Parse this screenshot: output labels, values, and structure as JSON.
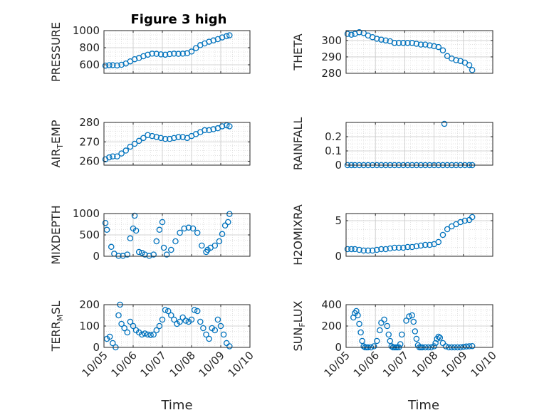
{
  "figure": {
    "title": "Figure 3 high",
    "xlabel": "Time",
    "x_tick_labels": [
      "10/05",
      "10/06",
      "10/07",
      "10/08",
      "10/09",
      "10/10"
    ],
    "marker_color": "#0072BD"
  },
  "chart_data": [
    {
      "type": "scatter",
      "id": "pressure",
      "title": "Figure 3 high",
      "ylabel": {
        "main": "PRESSURE",
        "sub": ""
      },
      "ylim": [
        500,
        1000
      ],
      "yticks": [
        600,
        800,
        1000
      ],
      "tick_labels": [
        "600",
        "800",
        "1000"
      ],
      "xlim": [
        0,
        5
      ],
      "xlabel": "",
      "x": [
        0.05,
        0.18,
        0.3,
        0.45,
        0.6,
        0.75,
        0.9,
        1.05,
        1.2,
        1.35,
        1.5,
        1.65,
        1.8,
        1.95,
        2.1,
        2.25,
        2.4,
        2.55,
        2.7,
        2.85,
        3.0,
        3.15,
        3.3,
        3.45,
        3.6,
        3.75,
        3.9,
        4.05,
        4.2,
        4.3
      ],
      "y": [
        590,
        595,
        595,
        592,
        600,
        615,
        640,
        665,
        680,
        700,
        718,
        730,
        728,
        722,
        718,
        725,
        730,
        728,
        730,
        735,
        755,
        795,
        830,
        850,
        870,
        885,
        900,
        920,
        935,
        945
      ]
    },
    {
      "type": "scatter",
      "id": "theta",
      "ylabel": {
        "main": "THETA",
        "sub": ""
      },
      "ylim": [
        280,
        306
      ],
      "yticks": [
        280,
        290,
        300
      ],
      "tick_labels": [
        "280",
        "290",
        "300"
      ],
      "xlim": [
        0,
        5
      ],
      "xlabel": "",
      "x": [
        0.05,
        0.18,
        0.3,
        0.45,
        0.6,
        0.75,
        0.9,
        1.05,
        1.2,
        1.35,
        1.5,
        1.65,
        1.8,
        1.95,
        2.1,
        2.25,
        2.4,
        2.55,
        2.7,
        2.85,
        3.0,
        3.15,
        3.3,
        3.45,
        3.6,
        3.75,
        3.9,
        4.05,
        4.2,
        4.3
      ],
      "y": [
        304,
        303.5,
        304,
        305,
        304.5,
        303,
        302,
        301,
        300.5,
        300,
        299.5,
        298.5,
        298.5,
        298.5,
        298.5,
        298.5,
        298,
        297.5,
        297.5,
        297,
        296.5,
        296,
        294,
        290.5,
        289,
        288,
        287.5,
        286.5,
        285,
        282
      ]
    },
    {
      "type": "scatter",
      "id": "air-temp",
      "ylabel": {
        "main": "AIR",
        "sub": "T",
        "rest": "EMP"
      },
      "ylim": [
        258,
        280
      ],
      "yticks": [
        260,
        270,
        280
      ],
      "tick_labels": [
        "260",
        "270",
        "280"
      ],
      "xlim": [
        0,
        5
      ],
      "xlabel": "",
      "x": [
        0.05,
        0.18,
        0.3,
        0.45,
        0.6,
        0.75,
        0.9,
        1.05,
        1.2,
        1.35,
        1.5,
        1.65,
        1.8,
        1.95,
        2.1,
        2.25,
        2.4,
        2.55,
        2.7,
        2.85,
        3.0,
        3.15,
        3.3,
        3.45,
        3.6,
        3.75,
        3.9,
        4.05,
        4.2,
        4.3
      ],
      "y": [
        261,
        262,
        262.5,
        262.5,
        264,
        265.5,
        267.5,
        269,
        270.5,
        272,
        273.5,
        273,
        272.5,
        272,
        271.5,
        271.5,
        272,
        272.5,
        272.5,
        272,
        273,
        274,
        275,
        276,
        276,
        276.5,
        277,
        278,
        278.5,
        278
      ]
    },
    {
      "type": "scatter",
      "id": "rainfall",
      "ylabel": {
        "main": "RAINFALL",
        "sub": ""
      },
      "ylim": [
        0,
        0.3
      ],
      "yticks": [
        0,
        0.1,
        0.2
      ],
      "tick_labels": [
        "0",
        "0.1",
        "0.2"
      ],
      "xlim": [
        0,
        5
      ],
      "xlabel": "",
      "x": [
        0.05,
        0.18,
        0.3,
        0.45,
        0.6,
        0.75,
        0.9,
        1.05,
        1.2,
        1.35,
        1.5,
        1.65,
        1.8,
        1.95,
        2.1,
        2.25,
        2.4,
        2.55,
        2.7,
        2.85,
        3.0,
        3.15,
        3.3,
        3.45,
        3.6,
        3.75,
        3.9,
        4.05,
        4.2,
        4.3,
        3.35
      ],
      "y": [
        0,
        0,
        0,
        0,
        0,
        0,
        0,
        0,
        0,
        0,
        0,
        0,
        0,
        0,
        0,
        0,
        0,
        0,
        0,
        0,
        0,
        0,
        0,
        0,
        0,
        0,
        0,
        0,
        0,
        0,
        0.29
      ]
    },
    {
      "type": "scatter",
      "id": "mixdepth",
      "ylabel": {
        "main": "MIXDEPTH",
        "sub": ""
      },
      "ylim": [
        0,
        1000
      ],
      "yticks": [
        0,
        500,
        1000
      ],
      "tick_labels": [
        "0",
        "500",
        "1000"
      ],
      "xlim": [
        0,
        5
      ],
      "xlabel": "",
      "x": [
        0.05,
        0.1,
        0.25,
        0.35,
        0.5,
        0.65,
        0.8,
        0.9,
        1.0,
        1.05,
        1.1,
        1.2,
        1.3,
        1.4,
        1.55,
        1.7,
        1.8,
        1.9,
        2.0,
        2.05,
        2.15,
        2.3,
        2.45,
        2.6,
        2.75,
        2.9,
        3.05,
        3.2,
        3.35,
        3.5,
        3.55,
        3.65,
        3.8,
        3.95,
        4.05,
        4.15,
        4.25,
        4.3
      ],
      "y": [
        780,
        620,
        220,
        60,
        10,
        10,
        40,
        420,
        650,
        950,
        600,
        100,
        80,
        40,
        10,
        40,
        350,
        620,
        800,
        200,
        40,
        150,
        350,
        550,
        650,
        670,
        650,
        550,
        250,
        100,
        150,
        200,
        250,
        350,
        520,
        720,
        800,
        990
      ]
    },
    {
      "type": "scatter",
      "id": "h2omixra",
      "ylabel": {
        "main": "H2OMIXRA",
        "sub": ""
      },
      "ylim": [
        0,
        6
      ],
      "yticks": [
        0,
        5
      ],
      "tick_labels": [
        "0",
        "5"
      ],
      "xlim": [
        0,
        5
      ],
      "xlabel": "",
      "x": [
        0.05,
        0.18,
        0.3,
        0.45,
        0.6,
        0.75,
        0.9,
        1.05,
        1.2,
        1.35,
        1.5,
        1.65,
        1.8,
        1.95,
        2.1,
        2.25,
        2.4,
        2.55,
        2.7,
        2.85,
        3.0,
        3.15,
        3.3,
        3.45,
        3.6,
        3.75,
        3.9,
        4.05,
        4.2,
        4.3
      ],
      "y": [
        1.0,
        1.0,
        1.0,
        0.9,
        0.8,
        0.8,
        0.8,
        0.9,
        1.0,
        1.0,
        1.1,
        1.2,
        1.2,
        1.2,
        1.3,
        1.3,
        1.4,
        1.5,
        1.6,
        1.6,
        1.7,
        2.0,
        3.0,
        3.8,
        4.2,
        4.5,
        4.8,
        5.0,
        5.1,
        5.5
      ]
    },
    {
      "type": "scatter",
      "id": "terr-msl",
      "ylabel": {
        "main": "TERR",
        "sub": "M",
        "rest": "SL"
      },
      "ylim": [
        0,
        200
      ],
      "yticks": [
        0,
        100,
        200
      ],
      "tick_labels": [
        "0",
        "100",
        "200"
      ],
      "xlim": [
        0,
        5
      ],
      "xlabel": "Time",
      "x_tick_labels": [
        "10/05",
        "10/06",
        "10/07",
        "10/08",
        "10/09",
        "10/10"
      ],
      "x": [
        0.1,
        0.2,
        0.3,
        0.4,
        0.5,
        0.55,
        0.6,
        0.7,
        0.8,
        0.9,
        1.0,
        1.1,
        1.2,
        1.3,
        1.4,
        1.5,
        1.6,
        1.7,
        1.8,
        1.9,
        2.0,
        2.1,
        2.2,
        2.3,
        2.4,
        2.5,
        2.6,
        2.7,
        2.8,
        2.9,
        3.0,
        3.1,
        3.2,
        3.3,
        3.4,
        3.5,
        3.6,
        3.7,
        3.8,
        3.9,
        4.0,
        4.1,
        4.2,
        4.3
      ],
      "y": [
        40,
        50,
        20,
        0,
        150,
        200,
        110,
        90,
        70,
        120,
        100,
        80,
        70,
        60,
        65,
        60,
        58,
        60,
        80,
        100,
        130,
        175,
        170,
        150,
        130,
        110,
        120,
        140,
        125,
        120,
        130,
        175,
        170,
        120,
        90,
        60,
        40,
        90,
        80,
        130,
        100,
        60,
        20,
        5
      ]
    },
    {
      "type": "scatter",
      "id": "sun-flux",
      "ylabel": {
        "main": "SUN",
        "sub": "F",
        "rest": "LUX"
      },
      "ylim": [
        0,
        400
      ],
      "yticks": [
        0,
        200,
        400
      ],
      "tick_labels": [
        "0",
        "200",
        "400"
      ],
      "xlim": [
        0,
        5
      ],
      "xlabel": "Time",
      "x_tick_labels": [
        "10/05",
        "10/06",
        "10/07",
        "10/08",
        "10/09",
        "10/10"
      ],
      "x": [
        0.25,
        0.3,
        0.35,
        0.4,
        0.45,
        0.5,
        0.55,
        0.6,
        0.65,
        0.7,
        0.75,
        0.85,
        0.95,
        1.05,
        1.15,
        1.2,
        1.3,
        1.4,
        1.45,
        1.5,
        1.55,
        1.6,
        1.65,
        1.7,
        1.75,
        1.8,
        1.85,
        1.9,
        2.05,
        2.15,
        2.25,
        2.3,
        2.35,
        2.4,
        2.45,
        2.5,
        2.55,
        2.6,
        2.7,
        2.8,
        2.9,
        3.0,
        3.05,
        3.1,
        3.15,
        3.2,
        3.3,
        3.4,
        3.5,
        3.6,
        3.7,
        3.8,
        3.9,
        4.0,
        4.1,
        4.2,
        4.3
      ],
      "y": [
        280,
        320,
        340,
        300,
        220,
        140,
        60,
        10,
        0,
        0,
        0,
        0,
        10,
        60,
        160,
        230,
        260,
        200,
        120,
        60,
        10,
        0,
        0,
        0,
        0,
        0,
        30,
        120,
        250,
        290,
        300,
        240,
        150,
        80,
        20,
        0,
        0,
        0,
        0,
        0,
        0,
        10,
        40,
        80,
        100,
        90,
        40,
        10,
        0,
        0,
        0,
        0,
        0,
        5,
        8,
        10,
        12
      ]
    }
  ]
}
